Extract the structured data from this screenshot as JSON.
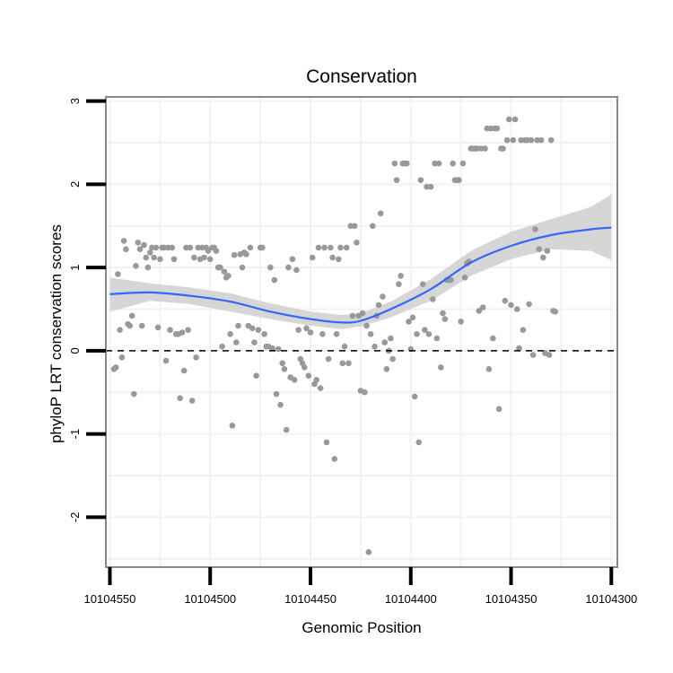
{
  "chart_data": {
    "type": "scatter",
    "title": "Conservation",
    "xlabel": "Genomic Position",
    "ylabel": "phyloP LRT conservation scores",
    "x_axis_reversed": true,
    "xlim": [
      10104552,
      10104297
    ],
    "ylim": [
      -2.6,
      3.05
    ],
    "x_ticks": [
      10104550,
      10104500,
      10104450,
      10104400,
      10104350,
      10104300
    ],
    "x_tick_labels": [
      "10104550",
      "10104500",
      "10104450",
      "10104400",
      "10104350",
      "10104300"
    ],
    "y_ticks": [
      -2,
      -1,
      0,
      1,
      2,
      3
    ],
    "y_tick_labels": [
      "-2",
      "-1",
      "0",
      "1",
      "2",
      "3"
    ],
    "reference_line": {
      "y": 0,
      "style": "dashed"
    },
    "colors": {
      "points": "#999999",
      "smooth": "#3366ff",
      "ribbon": "#d4d4d4",
      "panel_border": "#888888",
      "grid": "#f2f2f2"
    },
    "smooth": {
      "method": "loess",
      "x": [
        10104550,
        10104530,
        10104510,
        10104490,
        10104470,
        10104450,
        10104435,
        10104425,
        10104410,
        10104390,
        10104370,
        10104350,
        10104330,
        10104310,
        10104300
      ],
      "y": [
        0.68,
        0.7,
        0.66,
        0.59,
        0.47,
        0.38,
        0.34,
        0.36,
        0.5,
        0.74,
        1.06,
        1.26,
        1.39,
        1.46,
        1.48
      ],
      "lower": [
        0.47,
        0.6,
        0.56,
        0.47,
        0.38,
        0.3,
        0.26,
        0.29,
        0.4,
        0.6,
        0.9,
        1.1,
        1.22,
        1.2,
        1.09
      ],
      "upper": [
        0.88,
        0.81,
        0.76,
        0.69,
        0.57,
        0.47,
        0.43,
        0.45,
        0.59,
        0.86,
        1.2,
        1.43,
        1.58,
        1.73,
        1.88
      ]
    },
    "series": [
      {
        "name": "scores",
        "points": [
          [
            10104548,
            -0.22
          ],
          [
            10104547,
            -0.2
          ],
          [
            10104546,
            0.92
          ],
          [
            10104545,
            0.25
          ],
          [
            10104544,
            -0.08
          ],
          [
            10104543,
            1.32
          ],
          [
            10104542,
            1.22
          ],
          [
            10104541,
            0.32
          ],
          [
            10104540,
            0.3
          ],
          [
            10104539,
            0.42
          ],
          [
            10104538,
            -0.52
          ],
          [
            10104537,
            1.02
          ],
          [
            10104536,
            1.3
          ],
          [
            10104535,
            1.22
          ],
          [
            10104534,
            0.3
          ],
          [
            10104533,
            1.27
          ],
          [
            10104532,
            1.12
          ],
          [
            10104531,
            1.0
          ],
          [
            10104530,
            1.18
          ],
          [
            10104529,
            1.24
          ],
          [
            10104528,
            1.12
          ],
          [
            10104527,
            1.24
          ],
          [
            10104526,
            0.28
          ],
          [
            10104525,
            1.1
          ],
          [
            10104524,
            1.24
          ],
          [
            10104523,
            1.24
          ],
          [
            10104522,
            -0.12
          ],
          [
            10104521,
            1.24
          ],
          [
            10104520,
            0.25
          ],
          [
            10104519,
            1.24
          ],
          [
            10104518,
            1.1
          ],
          [
            10104517,
            0.2
          ],
          [
            10104516,
            0.2
          ],
          [
            10104515,
            -0.57
          ],
          [
            10104514,
            0.22
          ],
          [
            10104513,
            -0.24
          ],
          [
            10104512,
            1.24
          ],
          [
            10104511,
            0.25
          ],
          [
            10104510,
            1.24
          ],
          [
            10104509,
            -0.6
          ],
          [
            10104508,
            1.12
          ],
          [
            10104507,
            -0.08
          ],
          [
            10104506,
            1.24
          ],
          [
            10104505,
            1.1
          ],
          [
            10104504,
            1.24
          ],
          [
            10104503,
            1.12
          ],
          [
            10104502,
            1.24
          ],
          [
            10104501,
            1.2
          ],
          [
            10104500,
            1.1
          ],
          [
            10104499,
            1.24
          ],
          [
            10104498,
            1.24
          ],
          [
            10104497,
            1.2
          ],
          [
            10104496,
            1.0
          ],
          [
            10104495,
            1.0
          ],
          [
            10104494,
            0.05
          ],
          [
            10104493,
            0.95
          ],
          [
            10104492,
            0.88
          ],
          [
            10104491,
            0.9
          ],
          [
            10104490,
            0.2
          ],
          [
            10104489,
            -0.9
          ],
          [
            10104488,
            1.15
          ],
          [
            10104487,
            0.1
          ],
          [
            10104486,
            0.3
          ],
          [
            10104485,
            1.16
          ],
          [
            10104484,
            1.0
          ],
          [
            10104483,
            1.18
          ],
          [
            10104482,
            1.16
          ],
          [
            10104481,
            0.3
          ],
          [
            10104480,
            1.24
          ],
          [
            10104479,
            0.27
          ],
          [
            10104478,
            0.1
          ],
          [
            10104477,
            -0.3
          ],
          [
            10104476,
            0.25
          ],
          [
            10104475,
            1.24
          ],
          [
            10104474,
            1.24
          ],
          [
            10104473,
            0.2
          ],
          [
            10104472,
            0.05
          ],
          [
            10104471,
            0.05
          ],
          [
            10104470,
            1.0
          ],
          [
            10104469,
            0.03
          ],
          [
            10104468,
            0.85
          ],
          [
            10104467,
            -0.52
          ],
          [
            10104466,
            0.02
          ],
          [
            10104465,
            -0.65
          ],
          [
            10104464,
            -0.15
          ],
          [
            10104463,
            -0.22
          ],
          [
            10104462,
            -0.95
          ],
          [
            10104461,
            1.0
          ],
          [
            10104460,
            -0.32
          ],
          [
            10104459,
            1.1
          ],
          [
            10104458,
            -0.35
          ],
          [
            10104457,
            0.97
          ],
          [
            10104456,
            0.25
          ],
          [
            10104455,
            -0.1
          ],
          [
            10104454,
            -0.15
          ],
          [
            10104453,
            -0.2
          ],
          [
            10104452,
            0.27
          ],
          [
            10104451,
            -0.3
          ],
          [
            10104450,
            0.22
          ],
          [
            10104449,
            1.12
          ],
          [
            10104448,
            -0.4
          ],
          [
            10104447,
            -0.35
          ],
          [
            10104446,
            1.24
          ],
          [
            10104445,
            -0.45
          ],
          [
            10104444,
            0.2
          ],
          [
            10104443,
            1.24
          ],
          [
            10104442,
            -1.1
          ],
          [
            10104441,
            -0.1
          ],
          [
            10104440,
            1.24
          ],
          [
            10104439,
            1.12
          ],
          [
            10104438,
            -1.3
          ],
          [
            10104437,
            0.2
          ],
          [
            10104436,
            1.1
          ],
          [
            10104435,
            1.24
          ],
          [
            10104434,
            -0.15
          ],
          [
            10104433,
            0.05
          ],
          [
            10104432,
            1.24
          ],
          [
            10104431,
            -0.15
          ],
          [
            10104430,
            1.5
          ],
          [
            10104429,
            0.42
          ],
          [
            10104428,
            1.5
          ],
          [
            10104427,
            1.3
          ],
          [
            10104426,
            0.42
          ],
          [
            10104425,
            -0.48
          ],
          [
            10104424,
            0.45
          ],
          [
            10104423,
            -0.5
          ],
          [
            10104422,
            0.3
          ],
          [
            10104421,
            -2.42
          ],
          [
            10104420,
            0.2
          ],
          [
            10104419,
            1.5
          ],
          [
            10104418,
            0.05
          ],
          [
            10104417,
            0.42
          ],
          [
            10104416,
            0.55
          ],
          [
            10104415,
            1.65
          ],
          [
            10104414,
            0.65
          ],
          [
            10104413,
            0.1
          ],
          [
            10104412,
            -0.22
          ],
          [
            10104411,
            0.0
          ],
          [
            10104410,
            0.15
          ],
          [
            10104409,
            -0.1
          ],
          [
            10104408,
            2.25
          ],
          [
            10104407,
            2.05
          ],
          [
            10104406,
            0.8
          ],
          [
            10104405,
            0.9
          ],
          [
            10104404,
            2.25
          ],
          [
            10104403,
            2.25
          ],
          [
            10104402,
            2.25
          ],
          [
            10104401,
            0.35
          ],
          [
            10104400,
            0.02
          ],
          [
            10104399,
            0.4
          ],
          [
            10104398,
            -0.55
          ],
          [
            10104397,
            0.2
          ],
          [
            10104396,
            -1.1
          ],
          [
            10104395,
            2.05
          ],
          [
            10104394,
            0.8
          ],
          [
            10104393,
            0.25
          ],
          [
            10104392,
            1.97
          ],
          [
            10104391,
            0.2
          ],
          [
            10104390,
            1.97
          ],
          [
            10104389,
            0.62
          ],
          [
            10104388,
            2.25
          ],
          [
            10104387,
            0.15
          ],
          [
            10104386,
            2.25
          ],
          [
            10104385,
            -0.2
          ],
          [
            10104384,
            0.45
          ],
          [
            10104383,
            0.38
          ],
          [
            10104382,
            0.85
          ],
          [
            10104381,
            0.85
          ],
          [
            10104380,
            0.85
          ],
          [
            10104379,
            2.25
          ],
          [
            10104378,
            2.05
          ],
          [
            10104377,
            2.05
          ],
          [
            10104376,
            2.05
          ],
          [
            10104375,
            0.35
          ],
          [
            10104374,
            2.25
          ],
          [
            10104373,
            0.88
          ],
          [
            10104372,
            1.05
          ],
          [
            10104371,
            1.07
          ],
          [
            10104370,
            2.43
          ],
          [
            10104369,
            2.43
          ],
          [
            10104368,
            2.43
          ],
          [
            10104367,
            2.43
          ],
          [
            10104366,
            0.48
          ],
          [
            10104365,
            2.43
          ],
          [
            10104364,
            0.52
          ],
          [
            10104363,
            2.43
          ],
          [
            10104362,
            2.67
          ],
          [
            10104361,
            -0.22
          ],
          [
            10104360,
            2.67
          ],
          [
            10104359,
            0.15
          ],
          [
            10104358,
            2.67
          ],
          [
            10104357,
            2.67
          ],
          [
            10104356,
            -0.7
          ],
          [
            10104355,
            2.43
          ],
          [
            10104354,
            2.43
          ],
          [
            10104353,
            0.6
          ],
          [
            10104352,
            2.53
          ],
          [
            10104351,
            2.78
          ],
          [
            10104350,
            0.55
          ],
          [
            10104349,
            2.53
          ],
          [
            10104348,
            2.78
          ],
          [
            10104347,
            0.5
          ],
          [
            10104346,
            0.03
          ],
          [
            10104345,
            2.53
          ],
          [
            10104344,
            0.25
          ],
          [
            10104343,
            2.53
          ],
          [
            10104342,
            2.53
          ],
          [
            10104341,
            0.56
          ],
          [
            10104340,
            2.53
          ],
          [
            10104339,
            -0.05
          ],
          [
            10104338,
            1.46
          ],
          [
            10104337,
            2.53
          ],
          [
            10104336,
            1.22
          ],
          [
            10104335,
            2.53
          ],
          [
            10104334,
            1.12
          ],
          [
            10104333,
            -0.03
          ],
          [
            10104332,
            1.2
          ],
          [
            10104331,
            -0.05
          ],
          [
            10104330,
            2.53
          ],
          [
            10104329,
            0.48
          ],
          [
            10104328,
            0.47
          ]
        ]
      }
    ]
  }
}
